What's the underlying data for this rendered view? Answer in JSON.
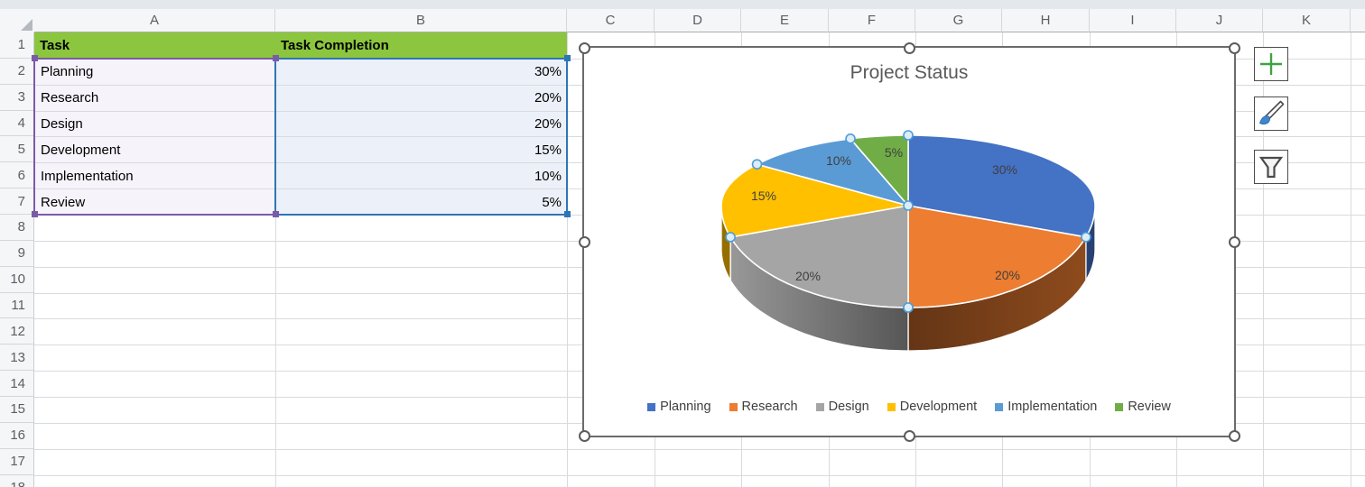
{
  "grid": {
    "column_headers": [
      "A",
      "B",
      "C",
      "D",
      "E",
      "F",
      "G",
      "H",
      "I",
      "J",
      "K"
    ],
    "row_headers": [
      "1",
      "2",
      "3",
      "4",
      "5",
      "6",
      "7",
      "8",
      "9",
      "10",
      "11",
      "12",
      "13",
      "14",
      "15",
      "16",
      "17",
      "18"
    ]
  },
  "table": {
    "headers": {
      "task": "Task",
      "completion": "Task Completion"
    },
    "rows": [
      {
        "task": "Planning",
        "completion": "30%"
      },
      {
        "task": "Research",
        "completion": "20%"
      },
      {
        "task": "Design",
        "completion": "20%"
      },
      {
        "task": "Development",
        "completion": "15%"
      },
      {
        "task": "Implementation",
        "completion": "10%"
      },
      {
        "task": "Review",
        "completion": "5%"
      }
    ],
    "colors": {
      "header_fill": "#8CC63E",
      "category_range_border": "#7A5BA8",
      "category_range_fill": "#F6F3FA",
      "value_range_border": "#2E75B6",
      "value_range_fill": "#ECF1F9"
    }
  },
  "chart_data": {
    "type": "pie",
    "is_3d": true,
    "title": "Project Status",
    "categories": [
      "Planning",
      "Research",
      "Design",
      "Development",
      "Implementation",
      "Review"
    ],
    "values": [
      30,
      20,
      20,
      15,
      10,
      5
    ],
    "data_labels": [
      "30%",
      "20%",
      "20%",
      "15%",
      "10%",
      "5%"
    ],
    "colors": [
      "#4472C4",
      "#ED7D31",
      "#A5A5A5",
      "#FFC000",
      "#5B9BD5",
      "#70AD47"
    ],
    "legend_position": "bottom",
    "label_color": "#3F3F3F",
    "title_color": "#595959"
  },
  "chart_toolbar": {
    "buttons": [
      {
        "id": "chart-elements",
        "icon": "plus-icon",
        "color": "#3EA244"
      },
      {
        "id": "chart-styles",
        "icon": "paintbrush-icon",
        "color": "#3E86D0"
      },
      {
        "id": "chart-filters",
        "icon": "funnel-icon",
        "color": "#4A4A4A"
      }
    ]
  }
}
